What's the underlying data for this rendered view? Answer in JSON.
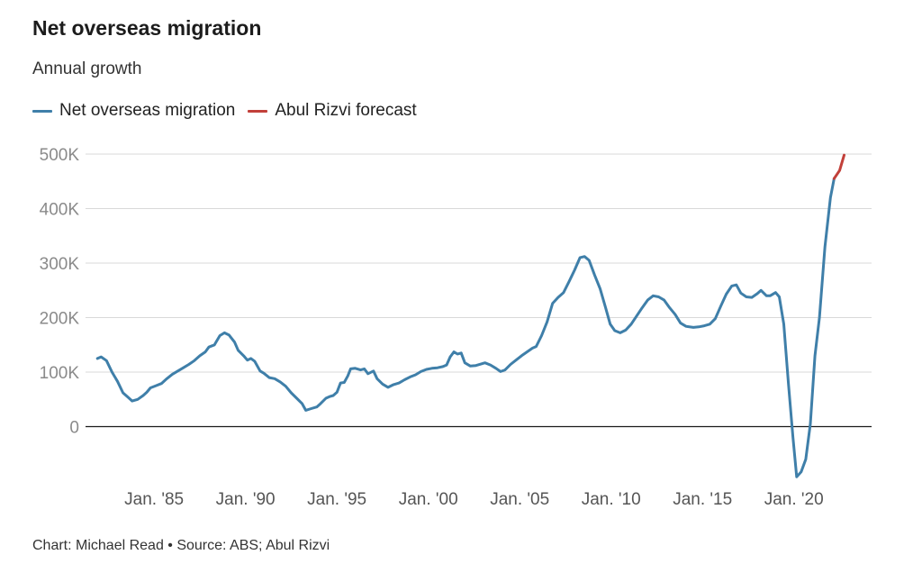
{
  "header": {
    "title": "Net overseas migration",
    "subtitle": "Annual growth"
  },
  "footer": {
    "credit": "Chart: Michael Read • Source: ABS; Abul Rizvi"
  },
  "chart_data": {
    "type": "line",
    "title": "Net overseas migration",
    "subtitle": "Annual growth",
    "xlabel": "",
    "ylabel": "",
    "ylim": [
      -100000,
      500000
    ],
    "xlim": [
      1981.25,
      2024.25
    ],
    "grid": true,
    "legend_position": "top-left",
    "y_ticks": [
      {
        "value": 0,
        "label": "0"
      },
      {
        "value": 100000,
        "label": "100K"
      },
      {
        "value": 200000,
        "label": "200K"
      },
      {
        "value": 300000,
        "label": "300K"
      },
      {
        "value": 400000,
        "label": "400K"
      },
      {
        "value": 500000,
        "label": "500K"
      }
    ],
    "x_ticks": [
      {
        "value": 1985,
        "label": "Jan. '85"
      },
      {
        "value": 1990,
        "label": "Jan. '90"
      },
      {
        "value": 1995,
        "label": "Jan. '95"
      },
      {
        "value": 2000,
        "label": "Jan. '00"
      },
      {
        "value": 2005,
        "label": "Jan. '05"
      },
      {
        "value": 2010,
        "label": "Jan. '10"
      },
      {
        "value": 2015,
        "label": "Jan. '15"
      },
      {
        "value": 2020,
        "label": "Jan. '20"
      }
    ],
    "series": [
      {
        "name": "Net overseas migration",
        "color": "#3f7fa9",
        "points": [
          [
            1981.9,
            125000
          ],
          [
            1982.1,
            128000
          ],
          [
            1982.4,
            121000
          ],
          [
            1982.7,
            100000
          ],
          [
            1983.0,
            83000
          ],
          [
            1983.3,
            62000
          ],
          [
            1983.6,
            53000
          ],
          [
            1983.8,
            47000
          ],
          [
            1984.1,
            50000
          ],
          [
            1984.4,
            57000
          ],
          [
            1984.6,
            63000
          ],
          [
            1984.8,
            71000
          ],
          [
            1985.1,
            75000
          ],
          [
            1985.4,
            79000
          ],
          [
            1985.7,
            88000
          ],
          [
            1986.0,
            96000
          ],
          [
            1986.3,
            102000
          ],
          [
            1986.6,
            108000
          ],
          [
            1986.9,
            114000
          ],
          [
            1987.2,
            121000
          ],
          [
            1987.5,
            130000
          ],
          [
            1987.8,
            137000
          ],
          [
            1988.0,
            146000
          ],
          [
            1988.3,
            150000
          ],
          [
            1988.6,
            167000
          ],
          [
            1988.85,
            172000
          ],
          [
            1989.1,
            168000
          ],
          [
            1989.4,
            155000
          ],
          [
            1989.6,
            140000
          ],
          [
            1989.9,
            130000
          ],
          [
            1990.1,
            122000
          ],
          [
            1990.3,
            125000
          ],
          [
            1990.5,
            120000
          ],
          [
            1990.8,
            102000
          ],
          [
            1991.0,
            98000
          ],
          [
            1991.3,
            90000
          ],
          [
            1991.6,
            88000
          ],
          [
            1991.9,
            82000
          ],
          [
            1992.2,
            74000
          ],
          [
            1992.5,
            62000
          ],
          [
            1992.8,
            52000
          ],
          [
            1993.1,
            42000
          ],
          [
            1993.3,
            30000
          ],
          [
            1993.6,
            33000
          ],
          [
            1993.9,
            36000
          ],
          [
            1994.1,
            42000
          ],
          [
            1994.4,
            52000
          ],
          [
            1994.6,
            55000
          ],
          [
            1994.8,
            57000
          ],
          [
            1995.0,
            63000
          ],
          [
            1995.2,
            80000
          ],
          [
            1995.4,
            81000
          ],
          [
            1995.6,
            93000
          ],
          [
            1995.75,
            106000
          ],
          [
            1996.0,
            107000
          ],
          [
            1996.3,
            104000
          ],
          [
            1996.5,
            106000
          ],
          [
            1996.7,
            97000
          ],
          [
            1997.0,
            102000
          ],
          [
            1997.2,
            88000
          ],
          [
            1997.5,
            78000
          ],
          [
            1997.8,
            72000
          ],
          [
            1998.1,
            77000
          ],
          [
            1998.4,
            80000
          ],
          [
            1998.7,
            86000
          ],
          [
            1999.0,
            91000
          ],
          [
            1999.3,
            95000
          ],
          [
            1999.6,
            101000
          ],
          [
            1999.9,
            105000
          ],
          [
            2000.2,
            107000
          ],
          [
            2000.5,
            108000
          ],
          [
            2000.8,
            110000
          ],
          [
            2001.0,
            113000
          ],
          [
            2001.2,
            128000
          ],
          [
            2001.4,
            137000
          ],
          [
            2001.6,
            133000
          ],
          [
            2001.8,
            135000
          ],
          [
            2002.0,
            117000
          ],
          [
            2002.3,
            111000
          ],
          [
            2002.6,
            112000
          ],
          [
            2002.9,
            115000
          ],
          [
            2003.1,
            117000
          ],
          [
            2003.4,
            113000
          ],
          [
            2003.7,
            107000
          ],
          [
            2003.95,
            101000
          ],
          [
            2004.2,
            104000
          ],
          [
            2004.5,
            114000
          ],
          [
            2004.8,
            122000
          ],
          [
            2005.1,
            130000
          ],
          [
            2005.4,
            137000
          ],
          [
            2005.7,
            144000
          ],
          [
            2005.9,
            147000
          ],
          [
            2006.2,
            167000
          ],
          [
            2006.5,
            192000
          ],
          [
            2006.8,
            226000
          ],
          [
            2007.1,
            237000
          ],
          [
            2007.4,
            246000
          ],
          [
            2007.7,
            266000
          ],
          [
            2008.0,
            287000
          ],
          [
            2008.3,
            310000
          ],
          [
            2008.55,
            312000
          ],
          [
            2008.8,
            305000
          ],
          [
            2009.1,
            278000
          ],
          [
            2009.4,
            253000
          ],
          [
            2009.7,
            218000
          ],
          [
            2009.95,
            188000
          ],
          [
            2010.2,
            176000
          ],
          [
            2010.5,
            172000
          ],
          [
            2010.8,
            177000
          ],
          [
            2011.1,
            188000
          ],
          [
            2011.4,
            203000
          ],
          [
            2011.7,
            218000
          ],
          [
            2012.0,
            232000
          ],
          [
            2012.3,
            240000
          ],
          [
            2012.6,
            238000
          ],
          [
            2012.9,
            232000
          ],
          [
            2013.2,
            218000
          ],
          [
            2013.5,
            206000
          ],
          [
            2013.8,
            190000
          ],
          [
            2014.1,
            184000
          ],
          [
            2014.5,
            182000
          ],
          [
            2014.8,
            183000
          ],
          [
            2015.1,
            185000
          ],
          [
            2015.4,
            188000
          ],
          [
            2015.7,
            198000
          ],
          [
            2016.0,
            221000
          ],
          [
            2016.3,
            243000
          ],
          [
            2016.6,
            258000
          ],
          [
            2016.85,
            260000
          ],
          [
            2017.1,
            245000
          ],
          [
            2017.4,
            238000
          ],
          [
            2017.7,
            237000
          ],
          [
            2018.0,
            244000
          ],
          [
            2018.2,
            250000
          ],
          [
            2018.5,
            240000
          ],
          [
            2018.7,
            240000
          ],
          [
            2019.0,
            246000
          ],
          [
            2019.2,
            238000
          ],
          [
            2019.45,
            188000
          ],
          [
            2019.7,
            80000
          ],
          [
            2019.95,
            -20000
          ],
          [
            2020.15,
            -92000
          ],
          [
            2020.4,
            -83000
          ],
          [
            2020.65,
            -60000
          ],
          [
            2020.9,
            5000
          ],
          [
            2021.15,
            130000
          ],
          [
            2021.4,
            200000
          ],
          [
            2021.7,
            330000
          ],
          [
            2022.0,
            420000
          ],
          [
            2022.2,
            455000
          ]
        ]
      },
      {
        "name": "Abul Rizvi forecast",
        "color": "#c2403a",
        "points": [
          [
            2022.2,
            455000
          ],
          [
            2022.5,
            470000
          ],
          [
            2022.75,
            498000
          ]
        ]
      }
    ]
  }
}
